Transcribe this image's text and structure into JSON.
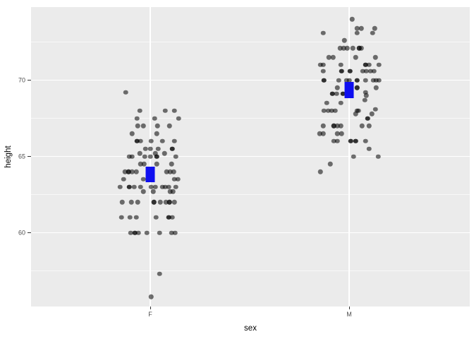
{
  "chart_data": {
    "type": "scatter",
    "subtype": "jittered-strip-plot-with-mean-crossbars",
    "title": "",
    "xlabel": "sex",
    "ylabel": "height",
    "x_categories": [
      "F",
      "M"
    ],
    "y_ticks": [
      60,
      65,
      70
    ],
    "y_minor_ticks": [
      57.5,
      62.5,
      67.5,
      72.5
    ],
    "ylim": [
      55.1,
      74.8
    ],
    "grid": "on",
    "legend": "none",
    "panel_bg": "#ebebeb",
    "grid_color": "#ffffff",
    "point_color": "#000000",
    "point_alpha": 0.55,
    "tick_label_color": "#4d4d4d",
    "crossbar_color": "#0f0ff0",
    "summary_rects": [
      {
        "category": "F",
        "y_top": 64.35,
        "y_bottom": 63.3
      },
      {
        "category": "M",
        "y_top": 69.88,
        "y_bottom": 68.82
      }
    ],
    "points_format": "[height_value, jitter_offset_px_from_category_center, overlap_count]",
    "points": {
      "F": [
        [
          69.2,
          -35,
          1
        ],
        [
          68,
          -15,
          1
        ],
        [
          68,
          21,
          1
        ],
        [
          68,
          34,
          1
        ],
        [
          67.5,
          -19,
          1
        ],
        [
          67.5,
          6,
          1
        ],
        [
          67.5,
          40,
          1
        ],
        [
          67,
          -18,
          1
        ],
        [
          67,
          -10,
          1
        ],
        [
          67,
          10,
          1
        ],
        [
          67,
          27,
          1
        ],
        [
          66.5,
          -26,
          1
        ],
        [
          66.5,
          9,
          1
        ],
        [
          66,
          -19,
          2
        ],
        [
          66,
          -14,
          1
        ],
        [
          66,
          1,
          1
        ],
        [
          66,
          17,
          1
        ],
        [
          66,
          34,
          1
        ],
        [
          65.5,
          -7,
          1
        ],
        [
          65.5,
          0,
          1
        ],
        [
          65.5,
          11,
          1
        ],
        [
          65.5,
          31,
          2
        ],
        [
          65.2,
          -15,
          1
        ],
        [
          65.2,
          7,
          1
        ],
        [
          65.2,
          20,
          1
        ],
        [
          65,
          -30,
          1
        ],
        [
          65,
          -26,
          1
        ],
        [
          65,
          -8,
          1
        ],
        [
          65,
          0,
          1
        ],
        [
          65,
          9,
          2
        ],
        [
          65,
          36,
          1
        ],
        [
          64.5,
          -14,
          1
        ],
        [
          64.5,
          -9,
          1
        ],
        [
          64.5,
          9,
          1
        ],
        [
          64.5,
          30,
          1
        ],
        [
          64,
          -36,
          1
        ],
        [
          64,
          -31,
          2
        ],
        [
          64,
          -26,
          1
        ],
        [
          64,
          -20,
          1
        ],
        [
          64,
          23,
          1
        ],
        [
          64,
          28,
          1
        ],
        [
          64,
          33,
          1
        ],
        [
          63.5,
          -38,
          1
        ],
        [
          63.5,
          -10,
          1
        ],
        [
          63.5,
          34,
          1
        ],
        [
          63.5,
          39,
          1
        ],
        [
          63,
          -43,
          1
        ],
        [
          63,
          -30,
          2
        ],
        [
          63,
          -23,
          1
        ],
        [
          63,
          -14,
          1
        ],
        [
          63,
          1,
          1
        ],
        [
          63,
          7,
          1
        ],
        [
          63,
          17,
          1
        ],
        [
          63,
          21,
          1
        ],
        [
          63,
          26,
          1
        ],
        [
          63,
          36,
          1
        ],
        [
          62.7,
          -10,
          1
        ],
        [
          62.7,
          4,
          1
        ],
        [
          62.7,
          28,
          1
        ],
        [
          62.7,
          32,
          1
        ],
        [
          62,
          -40,
          1
        ],
        [
          62,
          -27,
          1
        ],
        [
          62,
          -18,
          1
        ],
        [
          62,
          5,
          2
        ],
        [
          62,
          14,
          1
        ],
        [
          62,
          22,
          1
        ],
        [
          62,
          27,
          2
        ],
        [
          62,
          34,
          1
        ],
        [
          61,
          -41,
          1
        ],
        [
          61,
          -29,
          1
        ],
        [
          61,
          -20,
          1
        ],
        [
          61,
          8,
          1
        ],
        [
          61,
          26,
          2
        ],
        [
          61,
          31,
          1
        ],
        [
          60,
          -28,
          1
        ],
        [
          60,
          -22,
          2
        ],
        [
          60,
          -17,
          1
        ],
        [
          60,
          -5,
          1
        ],
        [
          60,
          13,
          1
        ],
        [
          60,
          30,
          1
        ],
        [
          60,
          35,
          1
        ],
        [
          57.3,
          13,
          1
        ],
        [
          55.8,
          1,
          1
        ]
      ],
      "M": [
        [
          74,
          4,
          1
        ],
        [
          73.4,
          11,
          1
        ],
        [
          73.4,
          17,
          1
        ],
        [
          73.4,
          36,
          1
        ],
        [
          73.1,
          -37,
          1
        ],
        [
          73.1,
          11,
          1
        ],
        [
          73.1,
          33,
          1
        ],
        [
          72.6,
          -7,
          1
        ],
        [
          72.1,
          -13,
          1
        ],
        [
          72.1,
          -8,
          1
        ],
        [
          72.1,
          -3,
          1
        ],
        [
          72.1,
          5,
          1
        ],
        [
          72.1,
          14,
          2
        ],
        [
          72.1,
          17,
          1
        ],
        [
          71.5,
          -29,
          1
        ],
        [
          71.5,
          -23,
          1
        ],
        [
          71.5,
          9,
          1
        ],
        [
          71.5,
          37,
          1
        ],
        [
          71,
          -41,
          1
        ],
        [
          71,
          -37,
          1
        ],
        [
          71,
          -12,
          1
        ],
        [
          71,
          23,
          2
        ],
        [
          71,
          28,
          1
        ],
        [
          71,
          42,
          1
        ],
        [
          70.6,
          -37,
          1
        ],
        [
          70.6,
          -11,
          2
        ],
        [
          70.6,
          1,
          2
        ],
        [
          70.6,
          19,
          1
        ],
        [
          70.6,
          24,
          1
        ],
        [
          70.6,
          30,
          1
        ],
        [
          70.6,
          35,
          1
        ],
        [
          70,
          -36,
          2
        ],
        [
          70,
          -15,
          1
        ],
        [
          70,
          -4,
          1
        ],
        [
          70,
          0,
          1
        ],
        [
          70,
          11,
          2
        ],
        [
          70,
          23,
          1
        ],
        [
          70,
          34,
          1
        ],
        [
          70,
          38,
          1
        ],
        [
          70,
          42,
          1
        ],
        [
          69.5,
          -17,
          1
        ],
        [
          69.5,
          11,
          2
        ],
        [
          69.5,
          38,
          1
        ],
        [
          69.2,
          23,
          1
        ],
        [
          69,
          24,
          1
        ],
        [
          69.1,
          -24,
          2
        ],
        [
          69.1,
          -18,
          1
        ],
        [
          69.1,
          -9,
          2
        ],
        [
          68.7,
          22,
          1
        ],
        [
          68.5,
          -32,
          1
        ],
        [
          68.5,
          -12,
          1
        ],
        [
          68.1,
          37,
          1
        ],
        [
          68,
          -36,
          1
        ],
        [
          68,
          -30,
          1
        ],
        [
          68,
          -25,
          1
        ],
        [
          68,
          -20,
          1
        ],
        [
          68,
          11,
          1
        ],
        [
          68,
          13,
          1
        ],
        [
          67.8,
          9,
          1
        ],
        [
          67.8,
          32,
          1
        ],
        [
          67.5,
          26,
          2
        ],
        [
          67,
          -37,
          1
        ],
        [
          67,
          -22,
          2
        ],
        [
          67,
          -17,
          1
        ],
        [
          67,
          -12,
          1
        ],
        [
          67,
          18,
          1
        ],
        [
          67,
          28,
          1
        ],
        [
          66.5,
          -42,
          1
        ],
        [
          66.5,
          -37,
          1
        ],
        [
          66.5,
          -17,
          1
        ],
        [
          66.5,
          -11,
          1
        ],
        [
          66,
          -22,
          1
        ],
        [
          66,
          -17,
          1
        ],
        [
          66,
          2,
          2
        ],
        [
          66,
          9,
          2
        ],
        [
          66,
          23,
          1
        ],
        [
          65.5,
          28,
          1
        ],
        [
          65,
          6,
          1
        ],
        [
          65,
          41,
          1
        ],
        [
          64.5,
          -27,
          1
        ],
        [
          64,
          -41,
          1
        ]
      ]
    }
  }
}
